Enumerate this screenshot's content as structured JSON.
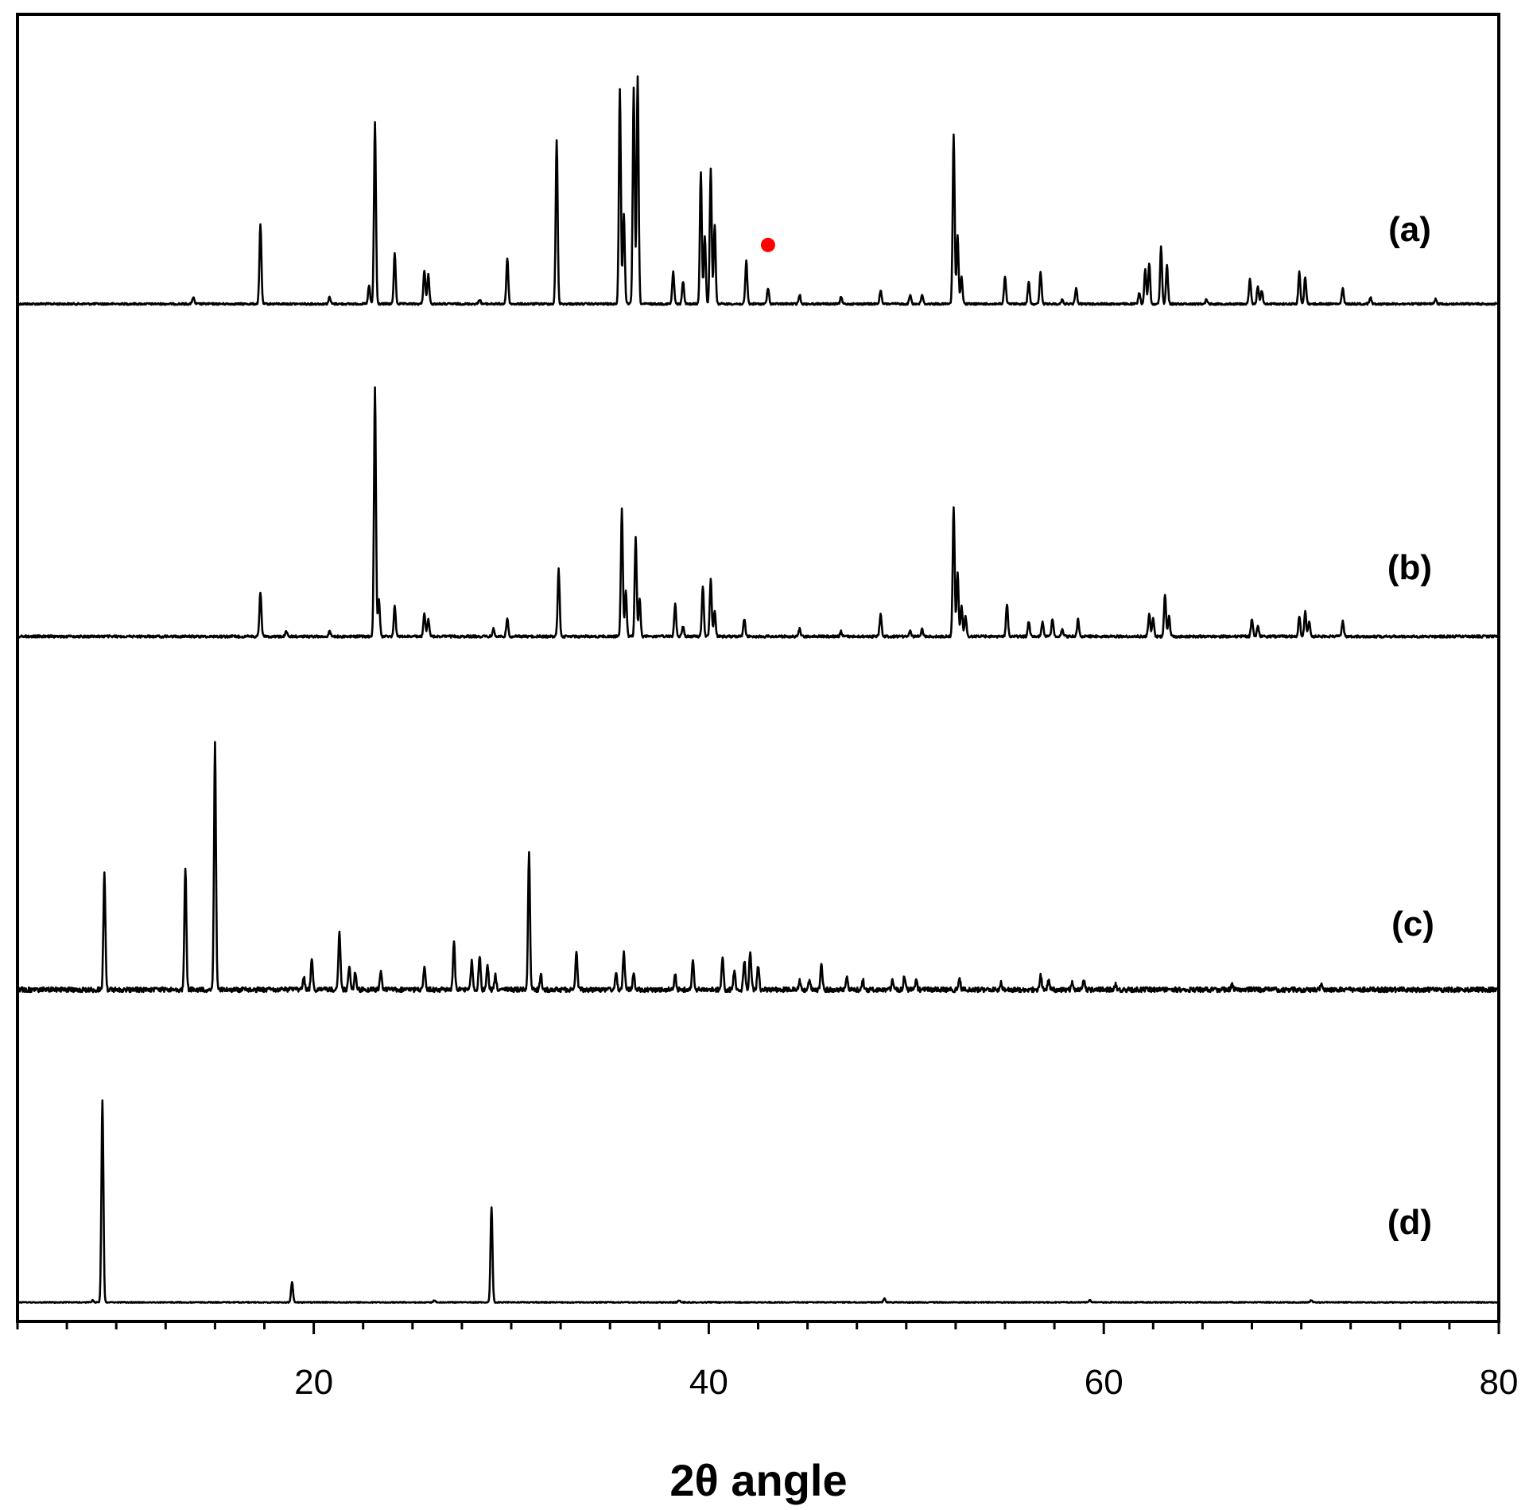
{
  "chart_data": {
    "type": "line",
    "title": "",
    "xlabel": "2θ angle",
    "ylabel": "",
    "xlim": [
      5,
      80
    ],
    "xticks": [
      20,
      40,
      60,
      80
    ],
    "xtick_labels": [
      "20",
      "40",
      "60",
      "80"
    ],
    "grid": false,
    "legend": "none",
    "line_color": "#000000",
    "marker_color": "#ff0000",
    "series": [
      {
        "name": "(a)",
        "baseline": 0,
        "peaks": [
          [
            13.9,
            3
          ],
          [
            17.3,
            35
          ],
          [
            20.8,
            3
          ],
          [
            22.8,
            8
          ],
          [
            23.1,
            80
          ],
          [
            24.1,
            22
          ],
          [
            25.6,
            15
          ],
          [
            25.8,
            13
          ],
          [
            28.4,
            2
          ],
          [
            29.8,
            20
          ],
          [
            32.3,
            72
          ],
          [
            35.5,
            95
          ],
          [
            35.7,
            40
          ],
          [
            36.2,
            95
          ],
          [
            36.4,
            100
          ],
          [
            38.2,
            14
          ],
          [
            38.7,
            10
          ],
          [
            39.6,
            58
          ],
          [
            39.8,
            30
          ],
          [
            40.1,
            60
          ],
          [
            40.3,
            35
          ],
          [
            41.9,
            19
          ],
          [
            43.0,
            7
          ],
          [
            44.6,
            4
          ],
          [
            46.7,
            3
          ],
          [
            48.7,
            6
          ],
          [
            50.2,
            4
          ],
          [
            50.8,
            4
          ],
          [
            52.4,
            75
          ],
          [
            52.6,
            30
          ],
          [
            52.8,
            12
          ],
          [
            55.0,
            12
          ],
          [
            56.2,
            10
          ],
          [
            56.8,
            14
          ],
          [
            57.9,
            2
          ],
          [
            58.6,
            7
          ],
          [
            61.8,
            5
          ],
          [
            62.1,
            15
          ],
          [
            62.3,
            18
          ],
          [
            62.9,
            25
          ],
          [
            63.2,
            17
          ],
          [
            65.2,
            2
          ],
          [
            67.4,
            11
          ],
          [
            67.8,
            8
          ],
          [
            68.0,
            6
          ],
          [
            69.9,
            14
          ],
          [
            70.2,
            12
          ],
          [
            72.1,
            7
          ],
          [
            73.5,
            3
          ],
          [
            76.8,
            2
          ]
        ],
        "marker": {
          "x": 43.0,
          "y": 26
        }
      },
      {
        "name": "(b)",
        "baseline": 0,
        "peaks": [
          [
            17.3,
            18
          ],
          [
            18.6,
            2
          ],
          [
            20.8,
            2
          ],
          [
            23.1,
            100
          ],
          [
            23.3,
            15
          ],
          [
            24.1,
            12
          ],
          [
            25.6,
            9
          ],
          [
            25.8,
            7
          ],
          [
            29.1,
            3
          ],
          [
            29.8,
            7
          ],
          [
            32.4,
            27
          ],
          [
            35.6,
            51
          ],
          [
            35.8,
            18
          ],
          [
            36.3,
            40
          ],
          [
            36.5,
            15
          ],
          [
            38.3,
            13
          ],
          [
            38.7,
            4
          ],
          [
            39.7,
            20
          ],
          [
            40.1,
            23
          ],
          [
            40.3,
            10
          ],
          [
            41.8,
            7
          ],
          [
            44.6,
            3
          ],
          [
            46.7,
            2
          ],
          [
            48.7,
            9
          ],
          [
            50.2,
            2
          ],
          [
            50.8,
            3
          ],
          [
            52.4,
            52
          ],
          [
            52.6,
            26
          ],
          [
            52.8,
            12
          ],
          [
            53.0,
            8
          ],
          [
            55.1,
            13
          ],
          [
            56.2,
            6
          ],
          [
            56.9,
            6
          ],
          [
            57.4,
            7
          ],
          [
            57.9,
            3
          ],
          [
            58.7,
            7
          ],
          [
            62.3,
            9
          ],
          [
            62.5,
            7
          ],
          [
            63.1,
            17
          ],
          [
            63.3,
            8
          ],
          [
            67.5,
            7
          ],
          [
            67.8,
            4
          ],
          [
            69.9,
            8
          ],
          [
            70.2,
            10
          ],
          [
            70.4,
            6
          ],
          [
            72.1,
            6
          ]
        ]
      },
      {
        "name": "(c)",
        "baseline": 0,
        "peaks": [
          [
            9.4,
            48
          ],
          [
            13.5,
            50
          ],
          [
            15.0,
            100
          ],
          [
            19.5,
            5
          ],
          [
            19.9,
            12
          ],
          [
            21.3,
            24
          ],
          [
            21.8,
            10
          ],
          [
            22.1,
            7
          ],
          [
            23.4,
            8
          ],
          [
            25.6,
            9
          ],
          [
            27.1,
            19
          ],
          [
            28.0,
            12
          ],
          [
            28.4,
            14
          ],
          [
            28.8,
            10
          ],
          [
            29.2,
            6
          ],
          [
            30.9,
            55
          ],
          [
            31.5,
            6
          ],
          [
            33.3,
            15
          ],
          [
            35.3,
            7
          ],
          [
            35.7,
            15
          ],
          [
            36.2,
            7
          ],
          [
            38.3,
            6
          ],
          [
            39.2,
            12
          ],
          [
            40.7,
            13
          ],
          [
            41.3,
            8
          ],
          [
            41.8,
            12
          ],
          [
            42.1,
            16
          ],
          [
            42.5,
            10
          ],
          [
            44.6,
            4
          ],
          [
            45.1,
            4
          ],
          [
            45.7,
            10
          ],
          [
            47.0,
            5
          ],
          [
            47.8,
            4
          ],
          [
            49.3,
            4
          ],
          [
            49.9,
            5
          ],
          [
            50.5,
            4
          ],
          [
            52.7,
            4
          ],
          [
            54.8,
            3
          ],
          [
            56.8,
            6
          ],
          [
            57.2,
            4
          ],
          [
            58.4,
            3
          ],
          [
            59.0,
            4
          ],
          [
            60.6,
            2
          ],
          [
            66.5,
            2
          ],
          [
            71.0,
            2
          ]
        ]
      },
      {
        "name": "(d)",
        "baseline": 0,
        "peaks": [
          [
            8.8,
            1
          ],
          [
            9.3,
            100
          ],
          [
            18.9,
            10
          ],
          [
            26.1,
            1
          ],
          [
            29.0,
            47
          ],
          [
            38.5,
            1
          ],
          [
            48.9,
            2
          ],
          [
            59.3,
            1
          ],
          [
            70.5,
            1
          ]
        ]
      }
    ]
  }
}
